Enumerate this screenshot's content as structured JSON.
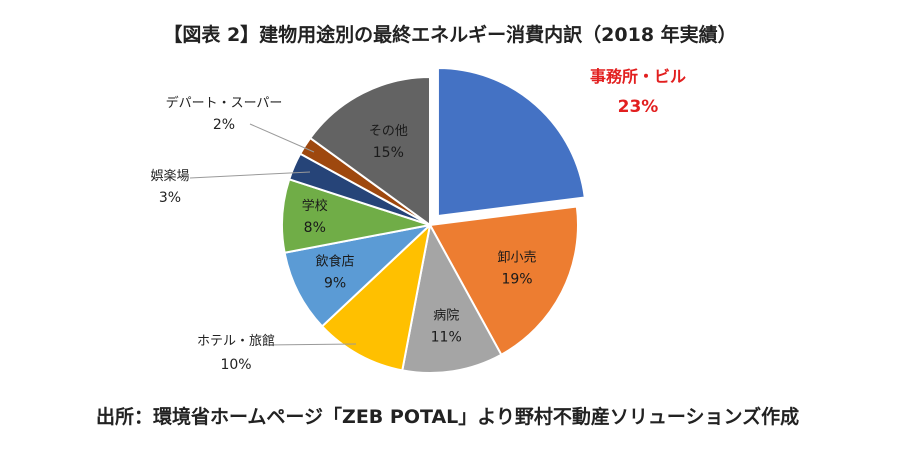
{
  "chart_data": {
    "type": "pie",
    "title": "【図表 2】建物用途別の最終エネルギー消費内訳（2018 年実績）",
    "slices": [
      {
        "category": "事務所・ビル",
        "value_label": "23%",
        "value": 23,
        "color": "#4472C4",
        "exploded": true,
        "highlight": true
      },
      {
        "category": "卸小売",
        "value_label": "19%",
        "value": 19,
        "color": "#ED7D31"
      },
      {
        "category": "病院",
        "value_label": "11%",
        "value": 11,
        "color": "#A5A5A5"
      },
      {
        "category": "ホテル・旅館",
        "value_label": "10%",
        "value": 10,
        "color": "#FFC000"
      },
      {
        "category": "飲食店",
        "value_label": "9%",
        "value": 9,
        "color": "#5B9BD5"
      },
      {
        "category": "学校",
        "value_label": "8%",
        "value": 8,
        "color": "#70AD47"
      },
      {
        "category": "娯楽場",
        "value_label": "3%",
        "value": 3,
        "color": "#264478"
      },
      {
        "category": "デパート・スーパー",
        "value_label": "2%",
        "value": 2,
        "color": "#9E480E"
      },
      {
        "category": "その他",
        "value_label": "15%",
        "value": 15,
        "color": "#636363"
      }
    ],
    "highlight_color": "#E21F1F"
  },
  "source": "出所：環境省ホームページ「ZEB POTAL」より野村不動産ソリューションズ作成"
}
